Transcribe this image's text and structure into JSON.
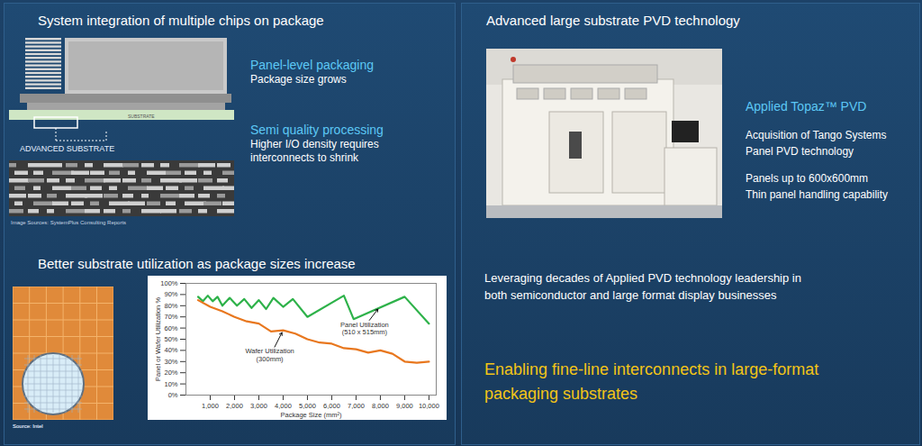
{
  "left_panel": {
    "title": "System integration of multiple chips on package",
    "image_labels": {
      "substrate": "SUBSTRATE",
      "advanced_substrate": "ADVANCED SUBSTRATE"
    },
    "points": [
      {
        "heading": "Panel-level packaging",
        "text": [
          "Package size grows"
        ]
      },
      {
        "heading": "Semi quality processing",
        "text": [
          "Higher I/O density requires",
          "interconnects to shrink"
        ]
      }
    ],
    "image_source": "Image Sources: SystemPlus Consulting Reports",
    "chart_heading": "Better substrate utilization as package sizes increase",
    "chart_source": "Source: Intel"
  },
  "right_panel": {
    "title": "Advanced large substrate PVD technology",
    "product": "Applied Topaz™ PVD",
    "details": [
      [
        "Acquisition of Tango Systems",
        "Panel PVD technology"
      ],
      [
        "Panels up to 600x600mm",
        "Thin panel handling capability"
      ]
    ],
    "body": [
      "Leveraging decades of Applied PVD technology leadership in",
      "both semiconductor and large format display businesses"
    ],
    "highlight": [
      "Enabling fine-line interconnects in large-format",
      "packaging substrates"
    ]
  },
  "chart_data": {
    "type": "line",
    "x_label": "Package Size (mm²)",
    "y_label": "Panel or Wafer Utilization %",
    "xlim": [
      0,
      10300
    ],
    "xticks": [
      {
        "value": 1000,
        "label": "1,000"
      },
      {
        "value": 2000,
        "label": "2,000"
      },
      {
        "value": 3000,
        "label": "3,000"
      },
      {
        "value": 4000,
        "label": "4,000"
      },
      {
        "value": 5000,
        "label": "5,000"
      },
      {
        "value": 6000,
        "label": "6,000"
      },
      {
        "value": 7000,
        "label": "7,000"
      },
      {
        "value": 8000,
        "label": "8,000"
      },
      {
        "value": 9000,
        "label": "9,000"
      },
      {
        "value": 10000,
        "label": "10,000"
      }
    ],
    "ylim": [
      0,
      100
    ],
    "yticks": [
      {
        "value": 0,
        "label": "0%"
      },
      {
        "value": 10,
        "label": "10%"
      },
      {
        "value": 20,
        "label": "20%"
      },
      {
        "value": 30,
        "label": "30%"
      },
      {
        "value": 40,
        "label": "40%"
      },
      {
        "value": 50,
        "label": "50%"
      },
      {
        "value": 60,
        "label": "60%"
      },
      {
        "value": 70,
        "label": "70%"
      },
      {
        "value": 80,
        "label": "80%"
      },
      {
        "value": 90,
        "label": "90%"
      },
      {
        "value": 100,
        "label": "100%"
      }
    ],
    "grid": false,
    "series": [
      {
        "name": "Panel Utilization\n(510 x 515mm)",
        "color": "#2eb24a",
        "x": [
          500,
          700,
          900,
          1100,
          1300,
          1500,
          1800,
          2100,
          2400,
          2700,
          3000,
          3300,
          3600,
          4000,
          4400,
          5000,
          6500,
          6900,
          9000,
          10000
        ],
        "values": [
          88,
          84,
          89,
          84,
          88,
          80,
          87,
          80,
          86,
          78,
          85,
          77,
          87,
          79,
          86,
          70,
          89,
          68,
          88,
          64
        ]
      },
      {
        "name": "Wafer Utilization\n(300mm)",
        "color": "#e8771e",
        "x": [
          500,
          1000,
          1500,
          2000,
          2500,
          3000,
          3500,
          4000,
          4500,
          5000,
          5500,
          6000,
          6500,
          7000,
          7500,
          8000,
          8500,
          9000,
          9500,
          10000
        ],
        "values": [
          85,
          79,
          75,
          70,
          66,
          64,
          57,
          58,
          55,
          50,
          47,
          46,
          42,
          41,
          38,
          40,
          37,
          30,
          29,
          30
        ]
      }
    ]
  }
}
